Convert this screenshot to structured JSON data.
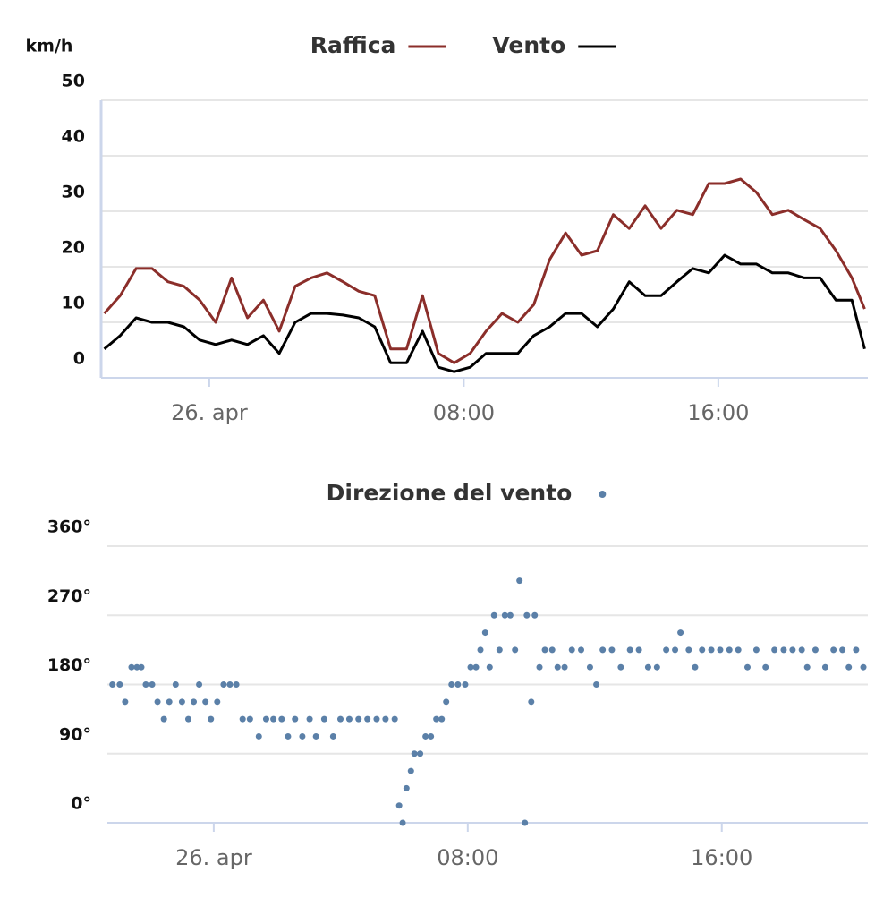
{
  "chart_data": [
    {
      "type": "line",
      "y_label": "km/h",
      "x": [
        -3.3,
        -2.8,
        -2.3,
        -1.8,
        -1.3,
        -0.8,
        -0.3,
        0.2,
        0.7,
        1.2,
        1.7,
        2.2,
        2.7,
        3.2,
        3.7,
        4.2,
        4.7,
        5.2,
        5.7,
        6.2,
        6.7,
        7.2,
        7.7,
        8.2,
        8.7,
        9.2,
        9.7,
        10.2,
        10.7,
        11.2,
        11.7,
        12.2,
        12.7,
        13.2,
        13.7,
        14.2,
        14.7,
        15.2,
        15.7,
        16.2,
        16.7,
        17.2,
        17.7,
        18.2,
        18.7,
        19.2,
        19.7,
        20.2,
        20.6
      ],
      "series": [
        {
          "name": "Raffica",
          "color": "#8b2e2a",
          "values": [
            11.6,
            14.8,
            19.7,
            19.7,
            17.3,
            16.5,
            14,
            10,
            18,
            10.8,
            14,
            8.4,
            16.5,
            18,
            18.9,
            17.3,
            15.6,
            14.8,
            5.2,
            5.2,
            14.8,
            4.4,
            2.7,
            4.4,
            8.4,
            11.6,
            10,
            13.2,
            21.3,
            26.1,
            22.1,
            22.9,
            29.4,
            26.9,
            31,
            26.9,
            30.2,
            29.4,
            35,
            35,
            35.8,
            33.4,
            29.4,
            30.2,
            28.5,
            26.9,
            22.9,
            18,
            12.4
          ]
        },
        {
          "name": "Vento",
          "color": "#000000",
          "values": [
            5.2,
            7.6,
            10.8,
            10,
            10,
            9.2,
            6.8,
            6,
            6.8,
            6,
            7.6,
            4.4,
            10,
            11.6,
            11.6,
            11.3,
            10.8,
            9.2,
            2.7,
            2.7,
            8.4,
            1.9,
            1.1,
            1.9,
            4.4,
            4.4,
            4.4,
            7.6,
            9.2,
            11.6,
            11.6,
            9.2,
            12.4,
            17.3,
            14.8,
            14.8,
            17.3,
            19.7,
            18.9,
            22.1,
            20.5,
            20.5,
            18.9,
            18.9,
            18,
            18,
            14,
            14,
            5.2
          ]
        }
      ],
      "xlim": [
        -3.4,
        20.7
      ],
      "xticks": [
        {
          "value": 0,
          "label": "26. apr"
        },
        {
          "value": 8,
          "label": "08:00"
        },
        {
          "value": 16,
          "label": "16:00"
        }
      ],
      "ylim": [
        0,
        50
      ],
      "yticks": [
        0,
        10,
        20,
        30,
        40,
        50
      ],
      "grid": true,
      "legend": "top"
    },
    {
      "type": "scatter",
      "series": [
        {
          "name": "Direzione del vento",
          "color": "#5b80a8",
          "x": [
            -3.19,
            -2.96,
            -2.79,
            -2.59,
            -2.42,
            -2.28,
            -2.14,
            -1.94,
            -1.77,
            -1.57,
            -1.4,
            -1.2,
            -1.0,
            -0.8,
            -0.63,
            -0.46,
            -0.26,
            -0.09,
            0.11,
            0.31,
            0.51,
            0.71,
            0.91,
            1.14,
            1.42,
            1.65,
            1.88,
            2.14,
            2.34,
            2.56,
            2.79,
            3.02,
            3.22,
            3.48,
            3.76,
            3.99,
            4.27,
            4.56,
            4.84,
            5.13,
            5.41,
            5.7,
            5.84,
            5.95,
            6.07,
            6.21,
            6.32,
            6.5,
            6.67,
            6.84,
            7.01,
            7.18,
            7.32,
            7.49,
            7.69,
            7.92,
            8.09,
            8.26,
            8.4,
            8.55,
            8.69,
            8.83,
            9.0,
            9.17,
            9.34,
            9.49,
            9.63,
            9.8,
            9.86,
            10.0,
            10.11,
            10.26,
            10.43,
            10.66,
            10.83,
            11.05,
            11.28,
            11.57,
            11.85,
            12.05,
            12.25,
            12.54,
            12.82,
            13.11,
            13.39,
            13.68,
            13.96,
            14.25,
            14.53,
            14.7,
            14.96,
            15.16,
            15.38,
            15.67,
            15.95,
            16.24,
            16.52,
            16.81,
            17.09,
            17.38,
            17.66,
            17.95,
            18.23,
            18.52,
            18.69,
            18.95,
            19.26,
            19.52,
            19.8,
            20.0,
            20.23,
            20.46
          ],
          "values": [
            180,
            180,
            157.5,
            202.5,
            202.5,
            202.5,
            180,
            180,
            157.5,
            135,
            157.5,
            180,
            157.5,
            135,
            157.5,
            180,
            157.5,
            135,
            157.5,
            180,
            180,
            180,
            135,
            135,
            112.5,
            135,
            135,
            135,
            112.5,
            135,
            112.5,
            135,
            112.5,
            135,
            112.5,
            135,
            135,
            135,
            135,
            135,
            135,
            135,
            22.5,
            0,
            45,
            67.5,
            90,
            90,
            112.5,
            112.5,
            135,
            135,
            157.5,
            180,
            180,
            180,
            202.5,
            202.5,
            225,
            247.5,
            202.5,
            270,
            225,
            270,
            270,
            225,
            315,
            0,
            270,
            157.5,
            270,
            202.5,
            225,
            225,
            202.5,
            202.5,
            225,
            225,
            202.5,
            180,
            225,
            225,
            202.5,
            225,
            225,
            202.5,
            202.5,
            225,
            225,
            247.5,
            225,
            202.5,
            225,
            225,
            225,
            225,
            225,
            202.5,
            225,
            202.5,
            225,
            225,
            225,
            225,
            202.5,
            225,
            202.5,
            225,
            225,
            202.5,
            225,
            202.5
          ]
        }
      ],
      "xlim": [
        -3.35,
        20.6
      ],
      "xticks": [
        {
          "value": 0,
          "label": "26. apr"
        },
        {
          "value": 8,
          "label": "08:00"
        },
        {
          "value": 16,
          "label": "16:00"
        }
      ],
      "ylim": [
        0,
        360
      ],
      "yticks": [
        {
          "value": 0,
          "label": "0°"
        },
        {
          "value": 90,
          "label": "90°"
        },
        {
          "value": 180,
          "label": "180°"
        },
        {
          "value": 270,
          "label": "270°"
        },
        {
          "value": 360,
          "label": "360°"
        }
      ],
      "grid": true,
      "legend": "top"
    }
  ]
}
